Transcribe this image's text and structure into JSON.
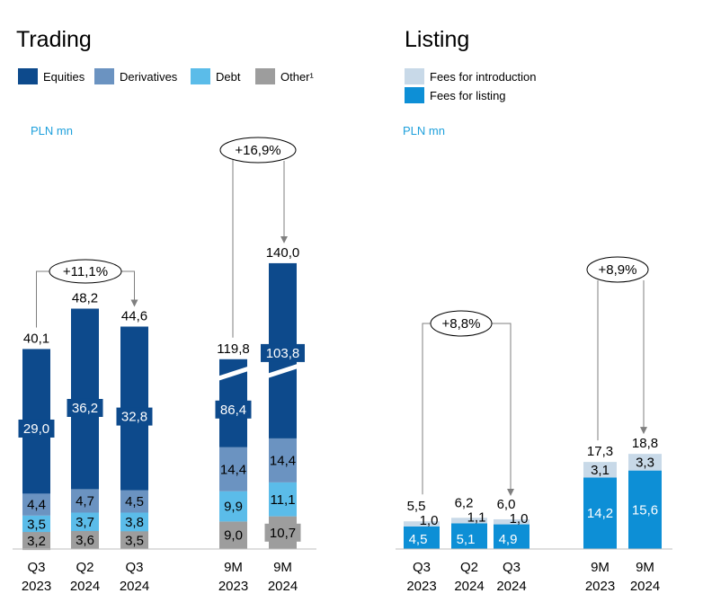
{
  "trading": {
    "title": "Trading",
    "unit": "PLN mn",
    "legend": [
      {
        "label": "Equities",
        "color": "#0d4a8c"
      },
      {
        "label": "Derivatives",
        "color": "#6b93c1"
      },
      {
        "label": "Debt",
        "color": "#5bbce9"
      },
      {
        "label": "Other¹",
        "color": "#9d9d9d"
      }
    ],
    "growth_labels": [
      "+11,1%",
      "+16,9%"
    ]
  },
  "listing": {
    "title": "Listing",
    "unit": "PLN mn",
    "legend": [
      {
        "label": "Fees for introduction",
        "color": "#c8d9e8"
      },
      {
        "label": "Fees for listing",
        "color": "#0d8fd6"
      }
    ],
    "growth_labels": [
      "+8,8%",
      "+8,9%"
    ]
  },
  "chart_data": [
    {
      "type": "bar",
      "stacked": true,
      "title": "Trading",
      "unit": "PLN mn",
      "categories": [
        "Q3 2023",
        "Q2 2024",
        "Q3 2024",
        "9M 2023",
        "9M 2024"
      ],
      "category_lines": [
        [
          "Q3",
          "2023"
        ],
        [
          "Q2",
          "2024"
        ],
        [
          "Q3",
          "2024"
        ],
        [
          "9M",
          "2023"
        ],
        [
          "9M",
          "2024"
        ]
      ],
      "series": [
        {
          "name": "Other¹",
          "values": [
            3.2,
            3.6,
            3.5,
            9.0,
            10.7
          ],
          "labels": [
            "3,2",
            "3,6",
            "3,5",
            "9,0",
            "10,7"
          ],
          "color": "#9d9d9d"
        },
        {
          "name": "Debt",
          "values": [
            3.5,
            3.7,
            3.8,
            9.9,
            11.1
          ],
          "labels": [
            "3,5",
            "3,7",
            "3,8",
            "9,9",
            "11,1"
          ],
          "color": "#5bbce9"
        },
        {
          "name": "Derivatives",
          "values": [
            4.4,
            4.7,
            4.5,
            14.4,
            14.4
          ],
          "labels": [
            "4,4",
            "4,7",
            "4,5",
            "14,4",
            "14,4"
          ],
          "color": "#6b93c1"
        },
        {
          "name": "Equities",
          "values": [
            29.0,
            36.2,
            32.8,
            86.4,
            103.8
          ],
          "labels": [
            "29,0",
            "36,2",
            "32,8",
            "86,4",
            "103,8"
          ],
          "color": "#0d4a8c"
        }
      ],
      "totals": [
        40.1,
        48.2,
        44.6,
        119.8,
        140.0
      ],
      "total_labels": [
        "40,1",
        "48,2",
        "44,6",
        "119,8",
        "140,0"
      ],
      "axis_break": true,
      "annotations": [
        {
          "from": "Q3 2023",
          "to": "Q3 2024",
          "text": "+11,1%"
        },
        {
          "from": "9M 2023",
          "to": "9M 2024",
          "text": "+16,9%"
        }
      ]
    },
    {
      "type": "bar",
      "stacked": true,
      "title": "Listing",
      "unit": "PLN mn",
      "categories": [
        "Q3 2023",
        "Q2 2024",
        "Q3 2024",
        "9M 2023",
        "9M 2024"
      ],
      "category_lines": [
        [
          "Q3",
          "2023"
        ],
        [
          "Q2",
          "2024"
        ],
        [
          "Q3",
          "2024"
        ],
        [
          "9M",
          "2023"
        ],
        [
          "9M",
          "2024"
        ]
      ],
      "series": [
        {
          "name": "Fees for listing",
          "values": [
            4.5,
            5.1,
            4.9,
            14.2,
            15.6
          ],
          "labels": [
            "4,5",
            "5,1",
            "4,9",
            "14,2",
            "15,6"
          ],
          "color": "#0d8fd6"
        },
        {
          "name": "Fees for introduction",
          "values": [
            1.0,
            1.1,
            1.0,
            3.1,
            3.3
          ],
          "labels": [
            "1,0",
            "1,1",
            "1,0",
            "3,1",
            "3,3"
          ],
          "color": "#c8d9e8"
        }
      ],
      "totals": [
        5.5,
        6.2,
        6.0,
        17.3,
        18.8
      ],
      "total_labels": [
        "5,5",
        "6,2",
        "6,0",
        "17,3",
        "18,8"
      ],
      "annotations": [
        {
          "from": "Q3 2023",
          "to": "Q3 2024",
          "text": "+8,8%"
        },
        {
          "from": "9M 2023",
          "to": "9M 2024",
          "text": "+8,9%"
        }
      ]
    }
  ]
}
